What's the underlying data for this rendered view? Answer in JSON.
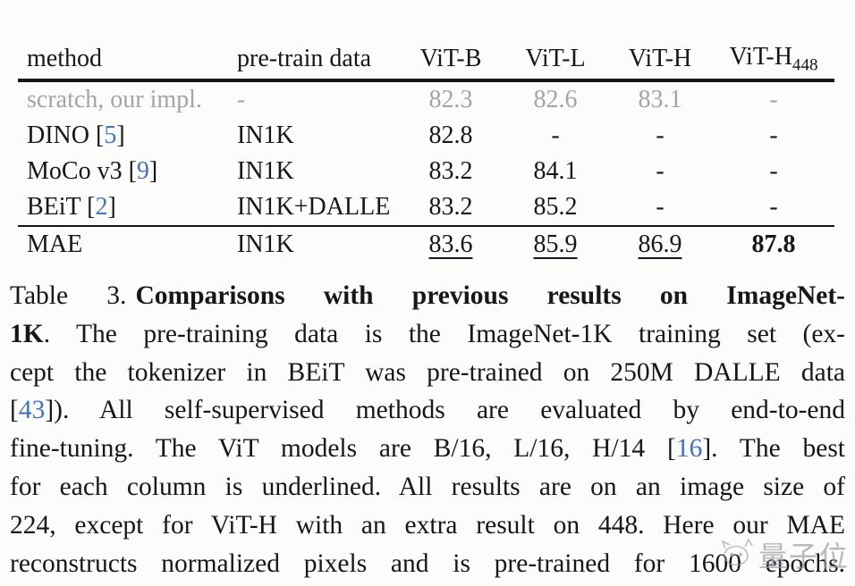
{
  "colors": {
    "bg": "#fcfcfb",
    "text": "#171717",
    "gray": "#a4a4a4",
    "cite": "#4573b9",
    "rule": "#161616",
    "wm": "#9aa0a6"
  },
  "table": {
    "columns": [
      {
        "key": "method",
        "label": "method"
      },
      {
        "key": "pretrain",
        "label": "pre-train data"
      },
      {
        "key": "vit-b",
        "label": "ViT-B"
      },
      {
        "key": "vit-l",
        "label": "ViT-L"
      },
      {
        "key": "vit-h",
        "label": "ViT-H"
      },
      {
        "key": "vit-h-448",
        "label": "ViT-H",
        "sub": "448"
      }
    ],
    "rows": [
      {
        "name": "scratch-our-impl",
        "gray": true,
        "method": [
          {
            "t": "scratch, our impl."
          }
        ],
        "pretrain": "-",
        "values": [
          {
            "v": "82.3"
          },
          {
            "v": "82.6"
          },
          {
            "v": "83.1"
          },
          {
            "v": "-"
          }
        ]
      },
      {
        "name": "dino",
        "method": [
          {
            "t": "DINO ["
          },
          {
            "t": "5",
            "cite": true
          },
          {
            "t": "]"
          }
        ],
        "pretrain": "IN1K",
        "values": [
          {
            "v": "82.8"
          },
          {
            "v": "-"
          },
          {
            "v": "-"
          },
          {
            "v": "-"
          }
        ]
      },
      {
        "name": "moco-v3",
        "method": [
          {
            "t": "MoCo v3 ["
          },
          {
            "t": "9",
            "cite": true
          },
          {
            "t": "]"
          }
        ],
        "pretrain": "IN1K",
        "values": [
          {
            "v": "83.2"
          },
          {
            "v": "84.1"
          },
          {
            "v": "-"
          },
          {
            "v": "-"
          }
        ]
      },
      {
        "name": "beit",
        "method": [
          {
            "t": "BEiT ["
          },
          {
            "t": "2",
            "cite": true
          },
          {
            "t": "]"
          }
        ],
        "pretrain": "IN1K+DALLE",
        "values": [
          {
            "v": "83.2"
          },
          {
            "v": "85.2"
          },
          {
            "v": "-"
          },
          {
            "v": "-"
          }
        ]
      },
      {
        "name": "mae",
        "rule_above": true,
        "method": [
          {
            "t": "MAE"
          }
        ],
        "pretrain": "IN1K",
        "values": [
          {
            "v": "83.6",
            "underline": true
          },
          {
            "v": "85.9",
            "underline": true
          },
          {
            "v": "86.9",
            "underline": true
          },
          {
            "v": "87.8",
            "bold": true
          }
        ]
      }
    ]
  },
  "caption": {
    "label": "Table 3.",
    "lines": [
      [
        {
          "t": "Table 3.",
          "gap": true
        },
        {
          "t": "Comparisons with previous results on ImageNet-",
          "b": true
        }
      ],
      [
        {
          "t": "1K",
          "b": true
        },
        {
          "t": ". The pre-training data is the ImageNet-1K training set (ex-"
        }
      ],
      [
        {
          "t": "cept the tokenizer in BEiT was pre-trained on 250M DALLE data"
        }
      ],
      [
        {
          "t": "["
        },
        {
          "t": "43",
          "c": true
        },
        {
          "t": "]). All self-supervised methods are evaluated by end-to-end"
        }
      ],
      [
        {
          "t": "fine-tuning. The ViT models are B/16, L/16, H/14 ["
        },
        {
          "t": "16",
          "c": true
        },
        {
          "t": "]. The best"
        }
      ],
      [
        {
          "t": "for each column is underlined. All results are on an image size of"
        }
      ],
      [
        {
          "t": "224, except for ViT-H with an extra result on 448. Here our MAE"
        }
      ],
      [
        {
          "t": "reconstructs normalized pixels and is pre-trained for 1600 epochs."
        }
      ]
    ]
  },
  "watermark": {
    "text": "量子位",
    "icon": "robot-face-icon"
  }
}
